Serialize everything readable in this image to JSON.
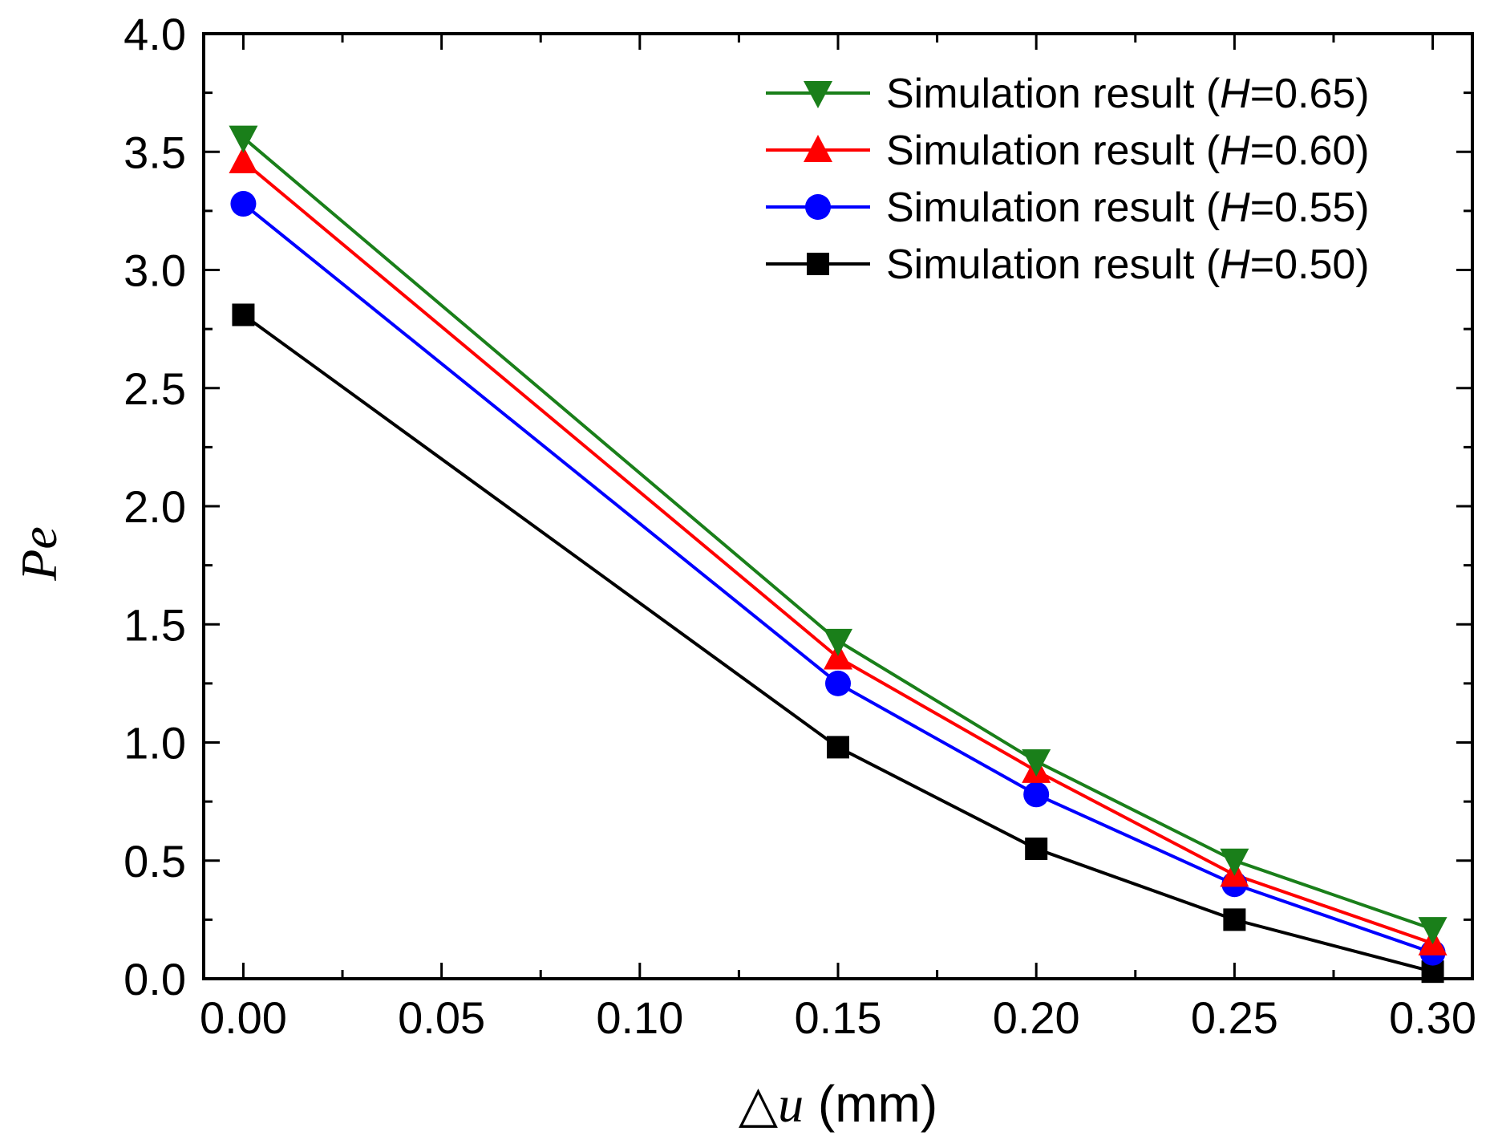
{
  "chart_data": {
    "type": "line",
    "title": "",
    "xlabel_symbol": "△",
    "xlabel_var": "u",
    "xlabel_unit": " (mm)",
    "ylabel_main": "P",
    "ylabel_sub": "e",
    "xlim": [
      -0.01,
      0.31
    ],
    "ylim": [
      0.0,
      4.0
    ],
    "xticks": [
      "0.00",
      "0.05",
      "0.10",
      "0.15",
      "0.20",
      "0.25",
      "0.30"
    ],
    "xtick_values": [
      0.0,
      0.05,
      0.1,
      0.15,
      0.2,
      0.25,
      0.3
    ],
    "yticks": [
      "0.0",
      "0.5",
      "1.0",
      "1.5",
      "2.0",
      "2.5",
      "3.0",
      "3.5",
      "4.0"
    ],
    "ytick_values": [
      0.0,
      0.5,
      1.0,
      1.5,
      2.0,
      2.5,
      3.0,
      3.5,
      4.0
    ],
    "x": [
      0.0,
      0.15,
      0.2,
      0.25,
      0.3
    ],
    "legend_position": "top-right",
    "series": [
      {
        "label_prefix": "Simulation result (",
        "label_var": "H",
        "label_suffix": "=0.65)",
        "color": "#1a7f1a",
        "marker": "triangle-down",
        "values": [
          3.56,
          1.43,
          0.92,
          0.5,
          0.21
        ]
      },
      {
        "label_prefix": "Simulation result (",
        "label_var": "H",
        "label_suffix": "=0.60)",
        "color": "#ff0000",
        "marker": "triangle-up",
        "values": [
          3.46,
          1.36,
          0.88,
          0.44,
          0.15
        ]
      },
      {
        "label_prefix": "Simulation result (",
        "label_var": "H",
        "label_suffix": "=0.55)",
        "color": "#0000ff",
        "marker": "circle",
        "values": [
          3.28,
          1.25,
          0.78,
          0.4,
          0.11
        ]
      },
      {
        "label_prefix": "Simulation result (",
        "label_var": "H",
        "label_suffix": "=0.50)",
        "color": "#000000",
        "marker": "square",
        "values": [
          2.81,
          0.98,
          0.55,
          0.25,
          0.03
        ]
      }
    ]
  }
}
